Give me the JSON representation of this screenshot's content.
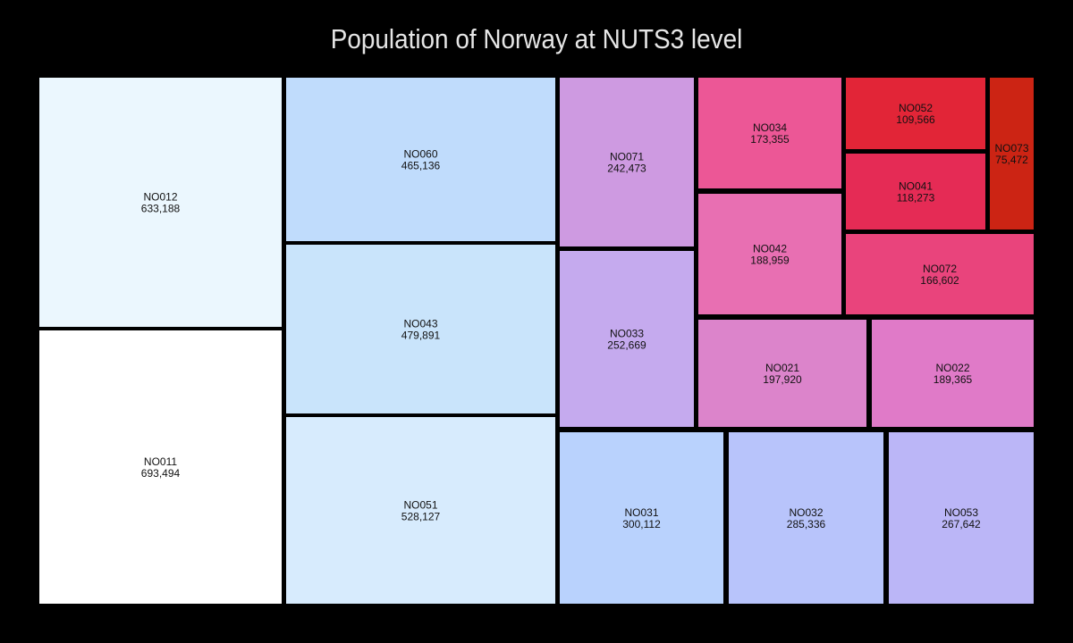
{
  "chart_data": {
    "type": "treemap",
    "title": "Population of Norway at NUTS3 level",
    "value_format": "thousands-comma",
    "tiles": [
      {
        "id": "NO011",
        "value": 693494,
        "color": "#ffffff"
      },
      {
        "id": "NO012",
        "value": 633188,
        "color": "#ebf7fe"
      },
      {
        "id": "NO051",
        "value": 528127,
        "color": "#d7ebfd"
      },
      {
        "id": "NO043",
        "value": 479891,
        "color": "#c9e4fb"
      },
      {
        "id": "NO060",
        "value": 465136,
        "color": "#c0dcfc"
      },
      {
        "id": "NO031",
        "value": 300112,
        "color": "#b9d2fd"
      },
      {
        "id": "NO032",
        "value": 285336,
        "color": "#b8c4fb"
      },
      {
        "id": "NO053",
        "value": 267642,
        "color": "#bbb6f7"
      },
      {
        "id": "NO033",
        "value": 252669,
        "color": "#c5aaee"
      },
      {
        "id": "NO071",
        "value": 242473,
        "color": "#ce9ae1"
      },
      {
        "id": "NO021",
        "value": 197920,
        "color": "#dc84cb"
      },
      {
        "id": "NO022",
        "value": 189365,
        "color": "#e07ac8"
      },
      {
        "id": "NO042",
        "value": 188959,
        "color": "#e86fb2"
      },
      {
        "id": "NO034",
        "value": 173355,
        "color": "#ec5796"
      },
      {
        "id": "NO072",
        "value": 166602,
        "color": "#e9447c"
      },
      {
        "id": "NO041",
        "value": 118273,
        "color": "#e52b55"
      },
      {
        "id": "NO052",
        "value": 109566,
        "color": "#e22537"
      },
      {
        "id": "NO073",
        "value": 75472,
        "color": "#cc2414"
      }
    ]
  }
}
